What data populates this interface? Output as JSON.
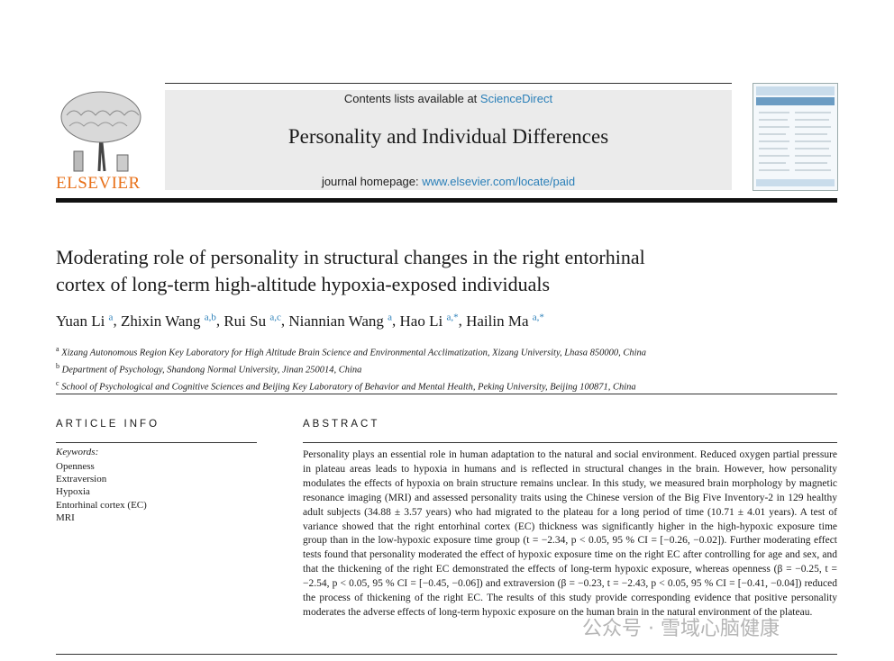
{
  "header": {
    "contents_prefix": "Contents lists available at ",
    "contents_link": "ScienceDirect",
    "journal_title": "Personality and Individual Differences",
    "homepage_prefix": "journal homepage: ",
    "homepage_link": "www.elsevier.com/locate/paid",
    "publisher": "ELSEVIER"
  },
  "article": {
    "title_line1": "Moderating role of personality in structural changes in the right entorhinal",
    "title_line2": "cortex of long-term high-altitude hypoxia-exposed individuals"
  },
  "authors": [
    {
      "name": "Yuan Li",
      "sup": "a"
    },
    {
      "name": "Zhixin Wang",
      "sup": "a,b"
    },
    {
      "name": "Rui Su",
      "sup": "a,c"
    },
    {
      "name": "Niannian Wang",
      "sup": "a"
    },
    {
      "name": "Hao Li",
      "sup": "a,*"
    },
    {
      "name": "Hailin Ma",
      "sup": "a,*"
    }
  ],
  "affiliations": [
    {
      "mark": "a",
      "text": "Xizang Autonomous Region Key Laboratory for High Altitude Brain Science and Environmental Acclimatization, Xizang University, Lhasa 850000, China"
    },
    {
      "mark": "b",
      "text": "Department of Psychology, Shandong Normal University, Jinan 250014, China"
    },
    {
      "mark": "c",
      "text": "School of Psychological and Cognitive Sciences and Beijing Key Laboratory of Behavior and Mental Health, Peking University, Beijing 100871, China"
    }
  ],
  "article_info": {
    "heading": "ARTICLE INFO",
    "keywords_label": "Keywords:",
    "keywords": [
      "Openness",
      "Extraversion",
      "Hypoxia",
      "Entorhinal cortex (EC)",
      "MRI"
    ]
  },
  "abstract": {
    "heading": "ABSTRACT",
    "text": "Personality plays an essential role in human adaptation to the natural and social environment. Reduced oxygen partial pressure in plateau areas leads to hypoxia in humans and is reflected in structural changes in the brain. However, how personality modulates the effects of hypoxia on brain structure remains unclear. In this study, we measured brain morphology by magnetic resonance imaging (MRI) and assessed personality traits using the Chinese version of the Big Five Inventory-2 in 129 healthy adult subjects (34.88 ± 3.57 years) who had migrated to the plateau for a long period of time (10.71 ± 4.01 years). A test of variance showed that the right entorhinal cortex (EC) thickness was significantly higher in the high-hypoxic exposure time group than in the low-hypoxic exposure time group (t = −2.34, p < 0.05, 95 % CI = [−0.26, −0.02]). Further moderating effect tests found that personality moderated the effect of hypoxic exposure time on the right EC after controlling for age and sex, and that the thickening of the right EC demonstrated the effects of long-term hypoxic exposure, whereas openness (β = −0.25, t = −2.54, p < 0.05, 95 % CI = [−0.45, −0.06]) and extraversion (β = −0.23, t = −2.43, p < 0.05, 95 % CI = [−0.41, −0.04]) reduced the process of thickening of the right EC. The results of this study provide corresponding evidence that positive personality moderates the adverse effects of long-term hypoxic exposure on the human brain in the natural environment of the plateau."
  },
  "watermark": "公众号 · 雪域心脑健康",
  "colors": {
    "link": "#2a7fb8",
    "elsevier_orange": "#e8711a",
    "header_bg": "#ebebeb"
  }
}
